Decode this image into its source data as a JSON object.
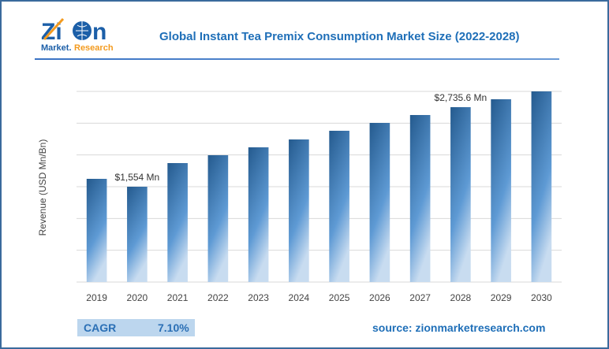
{
  "logo": {
    "brand": "Zion",
    "sub": "Market.Research"
  },
  "chart_data": {
    "type": "bar",
    "title": "Global Instant Tea Premix Consumption Market Size (2022-2028)",
    "ylabel": "Revenue (USD Mn/Bn)",
    "xlabel": "",
    "categories": [
      "2019",
      "2020",
      "2021",
      "2022",
      "2023",
      "2024",
      "2025",
      "2026",
      "2027",
      "2028",
      "2029",
      "2030"
    ],
    "values": [
      1671,
      1554,
      1905,
      2022,
      2139,
      2256,
      2385,
      2502,
      2619,
      2735.6,
      2853,
      2970
    ],
    "ylim": [
      138,
      2970
    ],
    "grid": true,
    "annotations": [
      {
        "category": "2020",
        "text": "$1,554 Mn"
      },
      {
        "category": "2028",
        "text": "$2,735.6 Mn"
      }
    ],
    "colors": {
      "bar_dark": "#245a8e",
      "bar_light": "#5e9ad4",
      "bar_highlight": "#c8dcf0",
      "grid": "#d9d9d9"
    }
  },
  "footer": {
    "cagr_label": "CAGR",
    "cagr_value": "7.10%",
    "source": "source: zionmarketresearch.com"
  }
}
